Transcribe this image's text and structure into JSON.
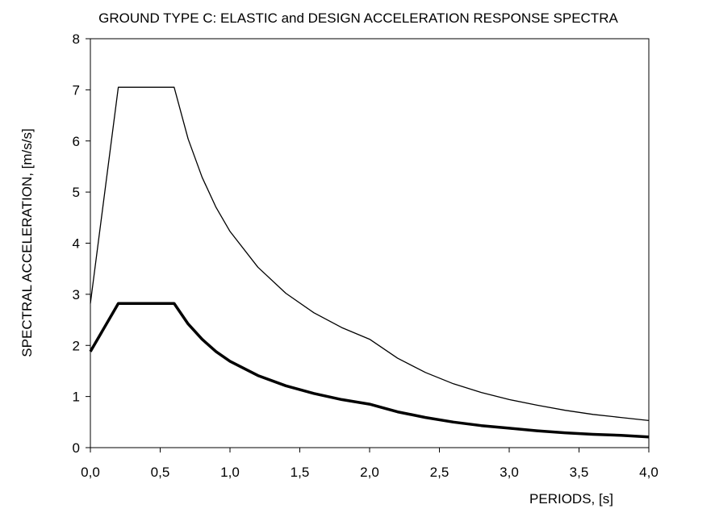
{
  "chart_data": {
    "type": "line",
    "title": "GROUND TYPE C: ELASTIC and DESIGN ACCELERATION RESPONSE SPECTRA",
    "xlabel": "PERIODS, [s]",
    "ylabel": "SPECTRAL ACCELERATION, [m/s/s]",
    "xlim": [
      0,
      4
    ],
    "ylim": [
      0,
      8
    ],
    "x_ticks": [
      "0,0",
      "0,5",
      "1,0",
      "1,5",
      "2,0",
      "2,5",
      "3,0",
      "3,5",
      "4,0"
    ],
    "y_ticks": [
      "0",
      "1",
      "2",
      "3",
      "4",
      "5",
      "6",
      "7",
      "8"
    ],
    "grid": false,
    "legend": "none",
    "series": [
      {
        "style": "thin",
        "color": "#000000",
        "points": [
          [
            0,
            2.82
          ],
          [
            0.2,
            7.05
          ],
          [
            0.6,
            7.05
          ],
          [
            0.7,
            6.04
          ],
          [
            0.8,
            5.29
          ],
          [
            0.9,
            4.7
          ],
          [
            1.0,
            4.23
          ],
          [
            1.2,
            3.53
          ],
          [
            1.4,
            3.02
          ],
          [
            1.6,
            2.64
          ],
          [
            1.8,
            2.35
          ],
          [
            2.0,
            2.12
          ],
          [
            2.2,
            1.75
          ],
          [
            2.4,
            1.47
          ],
          [
            2.6,
            1.25
          ],
          [
            2.8,
            1.08
          ],
          [
            3.0,
            0.94
          ],
          [
            3.2,
            0.83
          ],
          [
            3.4,
            0.73
          ],
          [
            3.6,
            0.65
          ],
          [
            3.8,
            0.59
          ],
          [
            4.0,
            0.53
          ]
        ]
      },
      {
        "style": "thick",
        "color": "#000000",
        "points": [
          [
            0,
            1.88
          ],
          [
            0.2,
            2.82
          ],
          [
            0.6,
            2.82
          ],
          [
            0.7,
            2.42
          ],
          [
            0.8,
            2.12
          ],
          [
            0.9,
            1.88
          ],
          [
            1.0,
            1.69
          ],
          [
            1.2,
            1.41
          ],
          [
            1.4,
            1.21
          ],
          [
            1.6,
            1.06
          ],
          [
            1.8,
            0.94
          ],
          [
            2.0,
            0.85
          ],
          [
            2.2,
            0.7
          ],
          [
            2.4,
            0.59
          ],
          [
            2.6,
            0.5
          ],
          [
            2.8,
            0.43
          ],
          [
            3.0,
            0.38
          ],
          [
            3.2,
            0.33
          ],
          [
            3.4,
            0.29
          ],
          [
            3.6,
            0.26
          ],
          [
            3.8,
            0.24
          ],
          [
            4.0,
            0.21
          ]
        ]
      }
    ]
  }
}
